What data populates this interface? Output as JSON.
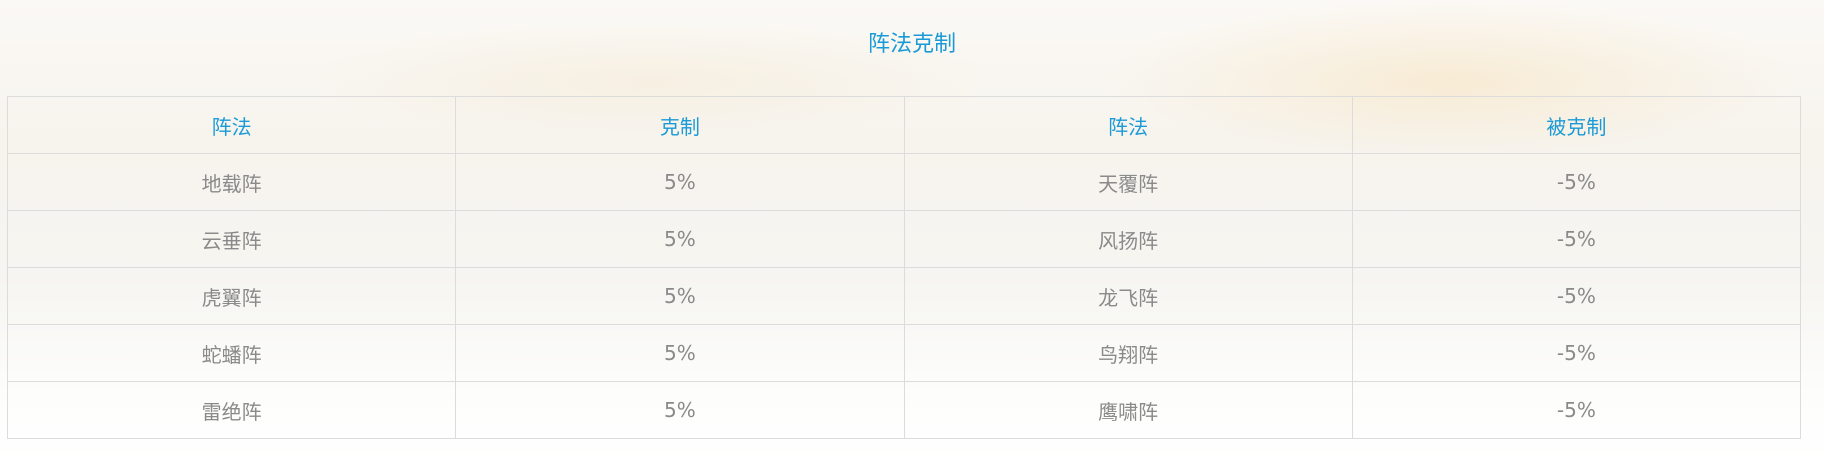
{
  "title": "阵法克制",
  "headers": [
    "阵法",
    "克制",
    "阵法",
    "被克制"
  ],
  "rows": [
    [
      "地载阵",
      "5%",
      "天覆阵",
      "-5%"
    ],
    [
      "云垂阵",
      "5%",
      "风扬阵",
      "-5%"
    ],
    [
      "虎翼阵",
      "5%",
      "龙飞阵",
      "-5%"
    ],
    [
      "蛇蟠阵",
      "5%",
      "鸟翔阵",
      "-5%"
    ],
    [
      "雷绝阵",
      "5%",
      "鹰啸阵",
      "-5%"
    ]
  ],
  "colors": {
    "accent": "#1a9ad6",
    "text": "#8a8a8a",
    "border": "#dcdcdc"
  }
}
